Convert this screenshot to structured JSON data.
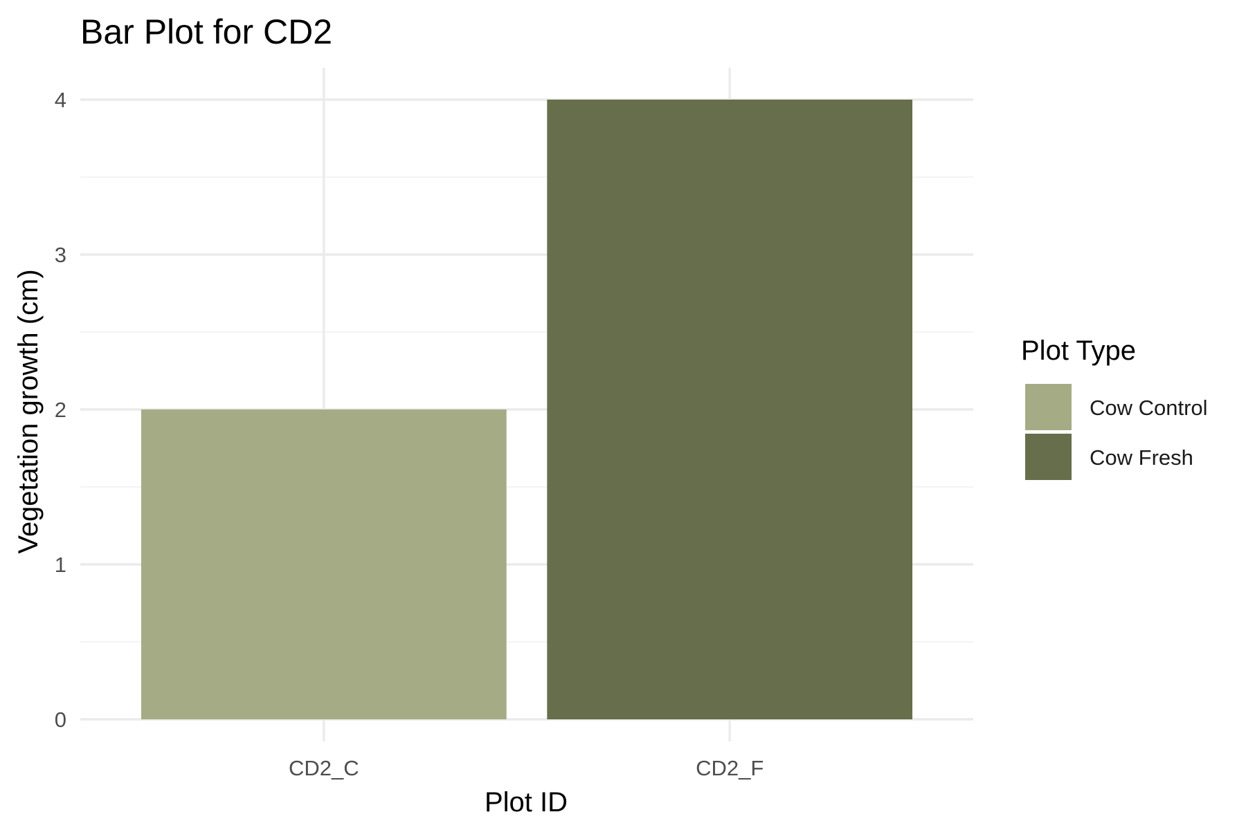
{
  "chart_data": {
    "type": "bar",
    "title": "Bar Plot for CD2",
    "xlabel": "Plot ID",
    "ylabel": "Vegetation growth (cm)",
    "categories": [
      "CD2_C",
      "CD2_F"
    ],
    "values": [
      2,
      4
    ],
    "bar_colors": [
      "#a5ac85",
      "#666e4b"
    ],
    "ylim": [
      0,
      4.15
    ],
    "yticks": [
      0,
      1,
      2,
      3,
      4
    ],
    "grid": true,
    "legend": {
      "title": "Plot Type",
      "placement": "right",
      "entries": [
        {
          "label": "Cow Control",
          "color": "#a5ac85"
        },
        {
          "label": "Cow Fresh",
          "color": "#666e4b"
        }
      ]
    }
  }
}
